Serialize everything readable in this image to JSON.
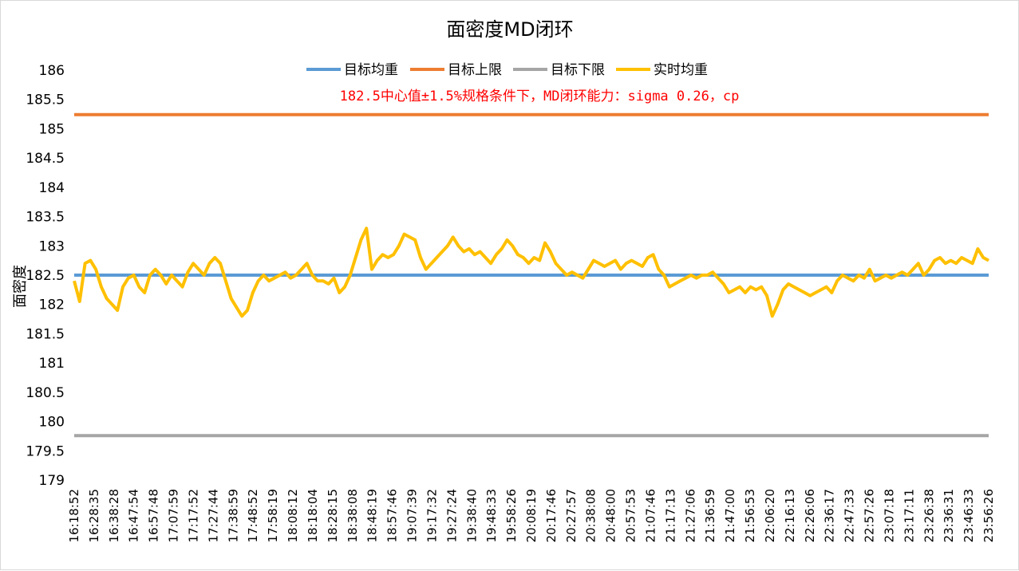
{
  "chart_data": {
    "type": "line",
    "title": "面密度MD闭环",
    "xlabel": "",
    "ylabel": "面密度",
    "ylim": [
      179,
      186
    ],
    "yticks": [
      "186",
      "185.5",
      "185",
      "184.5",
      "184",
      "183.5",
      "183",
      "182.5",
      "182",
      "181.5",
      "181",
      "180.5",
      "180",
      "179.5",
      "179"
    ],
    "x_tick_labels": [
      "16:18:52",
      "16:28:35",
      "16:38:28",
      "16:47:54",
      "16:57:48",
      "17:07:59",
      "17:17:52",
      "17:27:44",
      "17:38:59",
      "17:48:52",
      "17:58:19",
      "18:08:12",
      "18:18:04",
      "18:28:15",
      "18:38:08",
      "18:48:19",
      "18:57:46",
      "19:07:39",
      "19:17:32",
      "19:27:24",
      "19:38:40",
      "19:48:33",
      "19:58:26",
      "20:08:19",
      "20:17:46",
      "20:27:57",
      "20:38:08",
      "20:48:00",
      "20:57:53",
      "21:07:46",
      "21:17:13",
      "21:27:06",
      "21:36:59",
      "21:47:00",
      "21:56:53",
      "22:06:20",
      "22:16:13",
      "22:26:06",
      "22:36:17",
      "22:47:33",
      "22:57:26",
      "23:07:18",
      "23:17:11",
      "23:26:38",
      "23:36:31",
      "23:46:33",
      "23:56:26"
    ],
    "grid": false,
    "legend_position": "top",
    "annotation": "182.5中心值±1.5%规格条件下，MD闭环能力：sigma 0.26，cp",
    "annotation_color": "#ff0000",
    "series": [
      {
        "name": "目标均重",
        "color": "#5b9bd5",
        "constant": 182.5
      },
      {
        "name": "目标上限",
        "color": "#ed7d31",
        "constant": 185.24
      },
      {
        "name": "目标下限",
        "color": "#a5a5a5",
        "constant": 179.76
      },
      {
        "name": "实时均重",
        "color": "#ffc000",
        "values": [
          182.4,
          182.05,
          182.7,
          182.75,
          182.6,
          182.3,
          182.1,
          182.0,
          181.9,
          182.3,
          182.45,
          182.5,
          182.3,
          182.2,
          182.5,
          182.6,
          182.5,
          182.35,
          182.5,
          182.4,
          182.3,
          182.55,
          182.7,
          182.6,
          182.5,
          182.7,
          182.8,
          182.7,
          182.4,
          182.1,
          181.95,
          181.8,
          181.9,
          182.2,
          182.4,
          182.5,
          182.4,
          182.45,
          182.5,
          182.55,
          182.45,
          182.5,
          182.6,
          182.7,
          182.5,
          182.4,
          182.4,
          182.35,
          182.45,
          182.2,
          182.3,
          182.5,
          182.8,
          183.1,
          183.3,
          182.6,
          182.75,
          182.85,
          182.8,
          182.85,
          183.0,
          183.2,
          183.15,
          183.1,
          182.8,
          182.6,
          182.7,
          182.8,
          182.9,
          183.0,
          183.15,
          183.0,
          182.9,
          182.95,
          182.85,
          182.9,
          182.8,
          182.7,
          182.85,
          182.95,
          183.1,
          183.0,
          182.85,
          182.8,
          182.7,
          182.8,
          182.75,
          183.05,
          182.9,
          182.7,
          182.6,
          182.5,
          182.55,
          182.5,
          182.45,
          182.6,
          182.75,
          182.7,
          182.65,
          182.7,
          182.75,
          182.6,
          182.7,
          182.75,
          182.7,
          182.65,
          182.8,
          182.85,
          182.6,
          182.5,
          182.3,
          182.35,
          182.4,
          182.45,
          182.5,
          182.45,
          182.5,
          182.5,
          182.55,
          182.45,
          182.35,
          182.2,
          182.25,
          182.3,
          182.2,
          182.3,
          182.25,
          182.3,
          182.15,
          181.8,
          182.0,
          182.25,
          182.35,
          182.3,
          182.25,
          182.2,
          182.15,
          182.2,
          182.25,
          182.3,
          182.2,
          182.4,
          182.5,
          182.45,
          182.4,
          182.5,
          182.45,
          182.6,
          182.4,
          182.45,
          182.5,
          182.45,
          182.5,
          182.55,
          182.5,
          182.6,
          182.7,
          182.5,
          182.6,
          182.75,
          182.8,
          182.7,
          182.75,
          182.7,
          182.8,
          182.75,
          182.7,
          182.95,
          182.8,
          182.75
        ]
      }
    ]
  }
}
